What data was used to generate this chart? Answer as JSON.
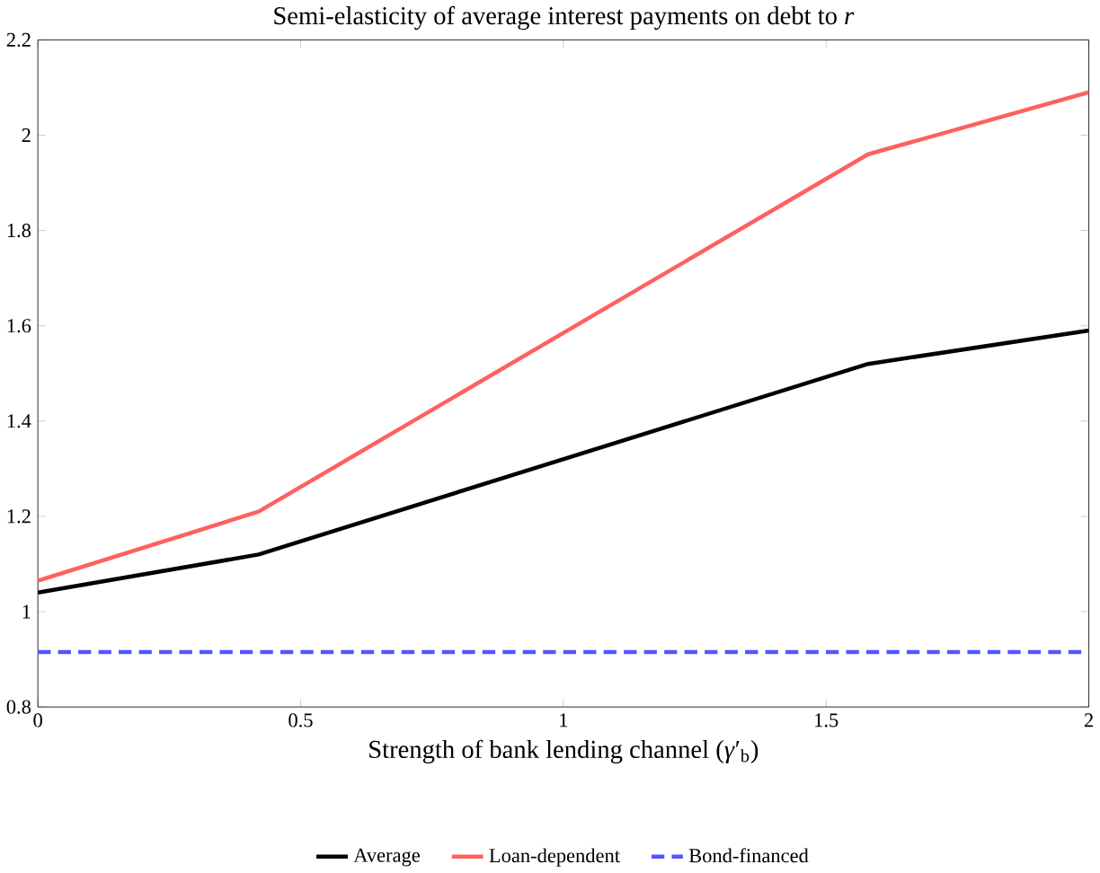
{
  "chart_data": {
    "type": "line",
    "title": "Semi-elasticity of average interest payments on debt to *r*",
    "xlabel": "Strength of bank lending channel (*γ*′$_{b}$)",
    "xlim": [
      0,
      2
    ],
    "ylim": [
      0.8,
      2.2
    ],
    "xticks": [
      0,
      0.5,
      1,
      1.5,
      2
    ],
    "yticks": [
      0.8,
      1,
      1.2,
      1.4,
      1.6,
      1.8,
      2,
      2.2
    ],
    "grid": false,
    "legend": "bottom",
    "marker": "none",
    "series": [
      {
        "name": "Average",
        "color": "#000000",
        "x": [
          0,
          0.42,
          1.58,
          2
        ],
        "values": [
          1.04,
          1.12,
          1.52,
          1.59
        ],
        "line_style": "solid"
      },
      {
        "name": "Loan-dependent",
        "color": "#ff6060",
        "x": [
          0,
          0.42,
          1.58,
          2
        ],
        "values": [
          1.065,
          1.21,
          1.96,
          2.09
        ],
        "line_style": "solid"
      },
      {
        "name": "Bond-financed",
        "color": "#5555ff",
        "x": [
          0,
          2
        ],
        "values": [
          0.915,
          0.915
        ],
        "line_style": "dashed"
      }
    ]
  }
}
